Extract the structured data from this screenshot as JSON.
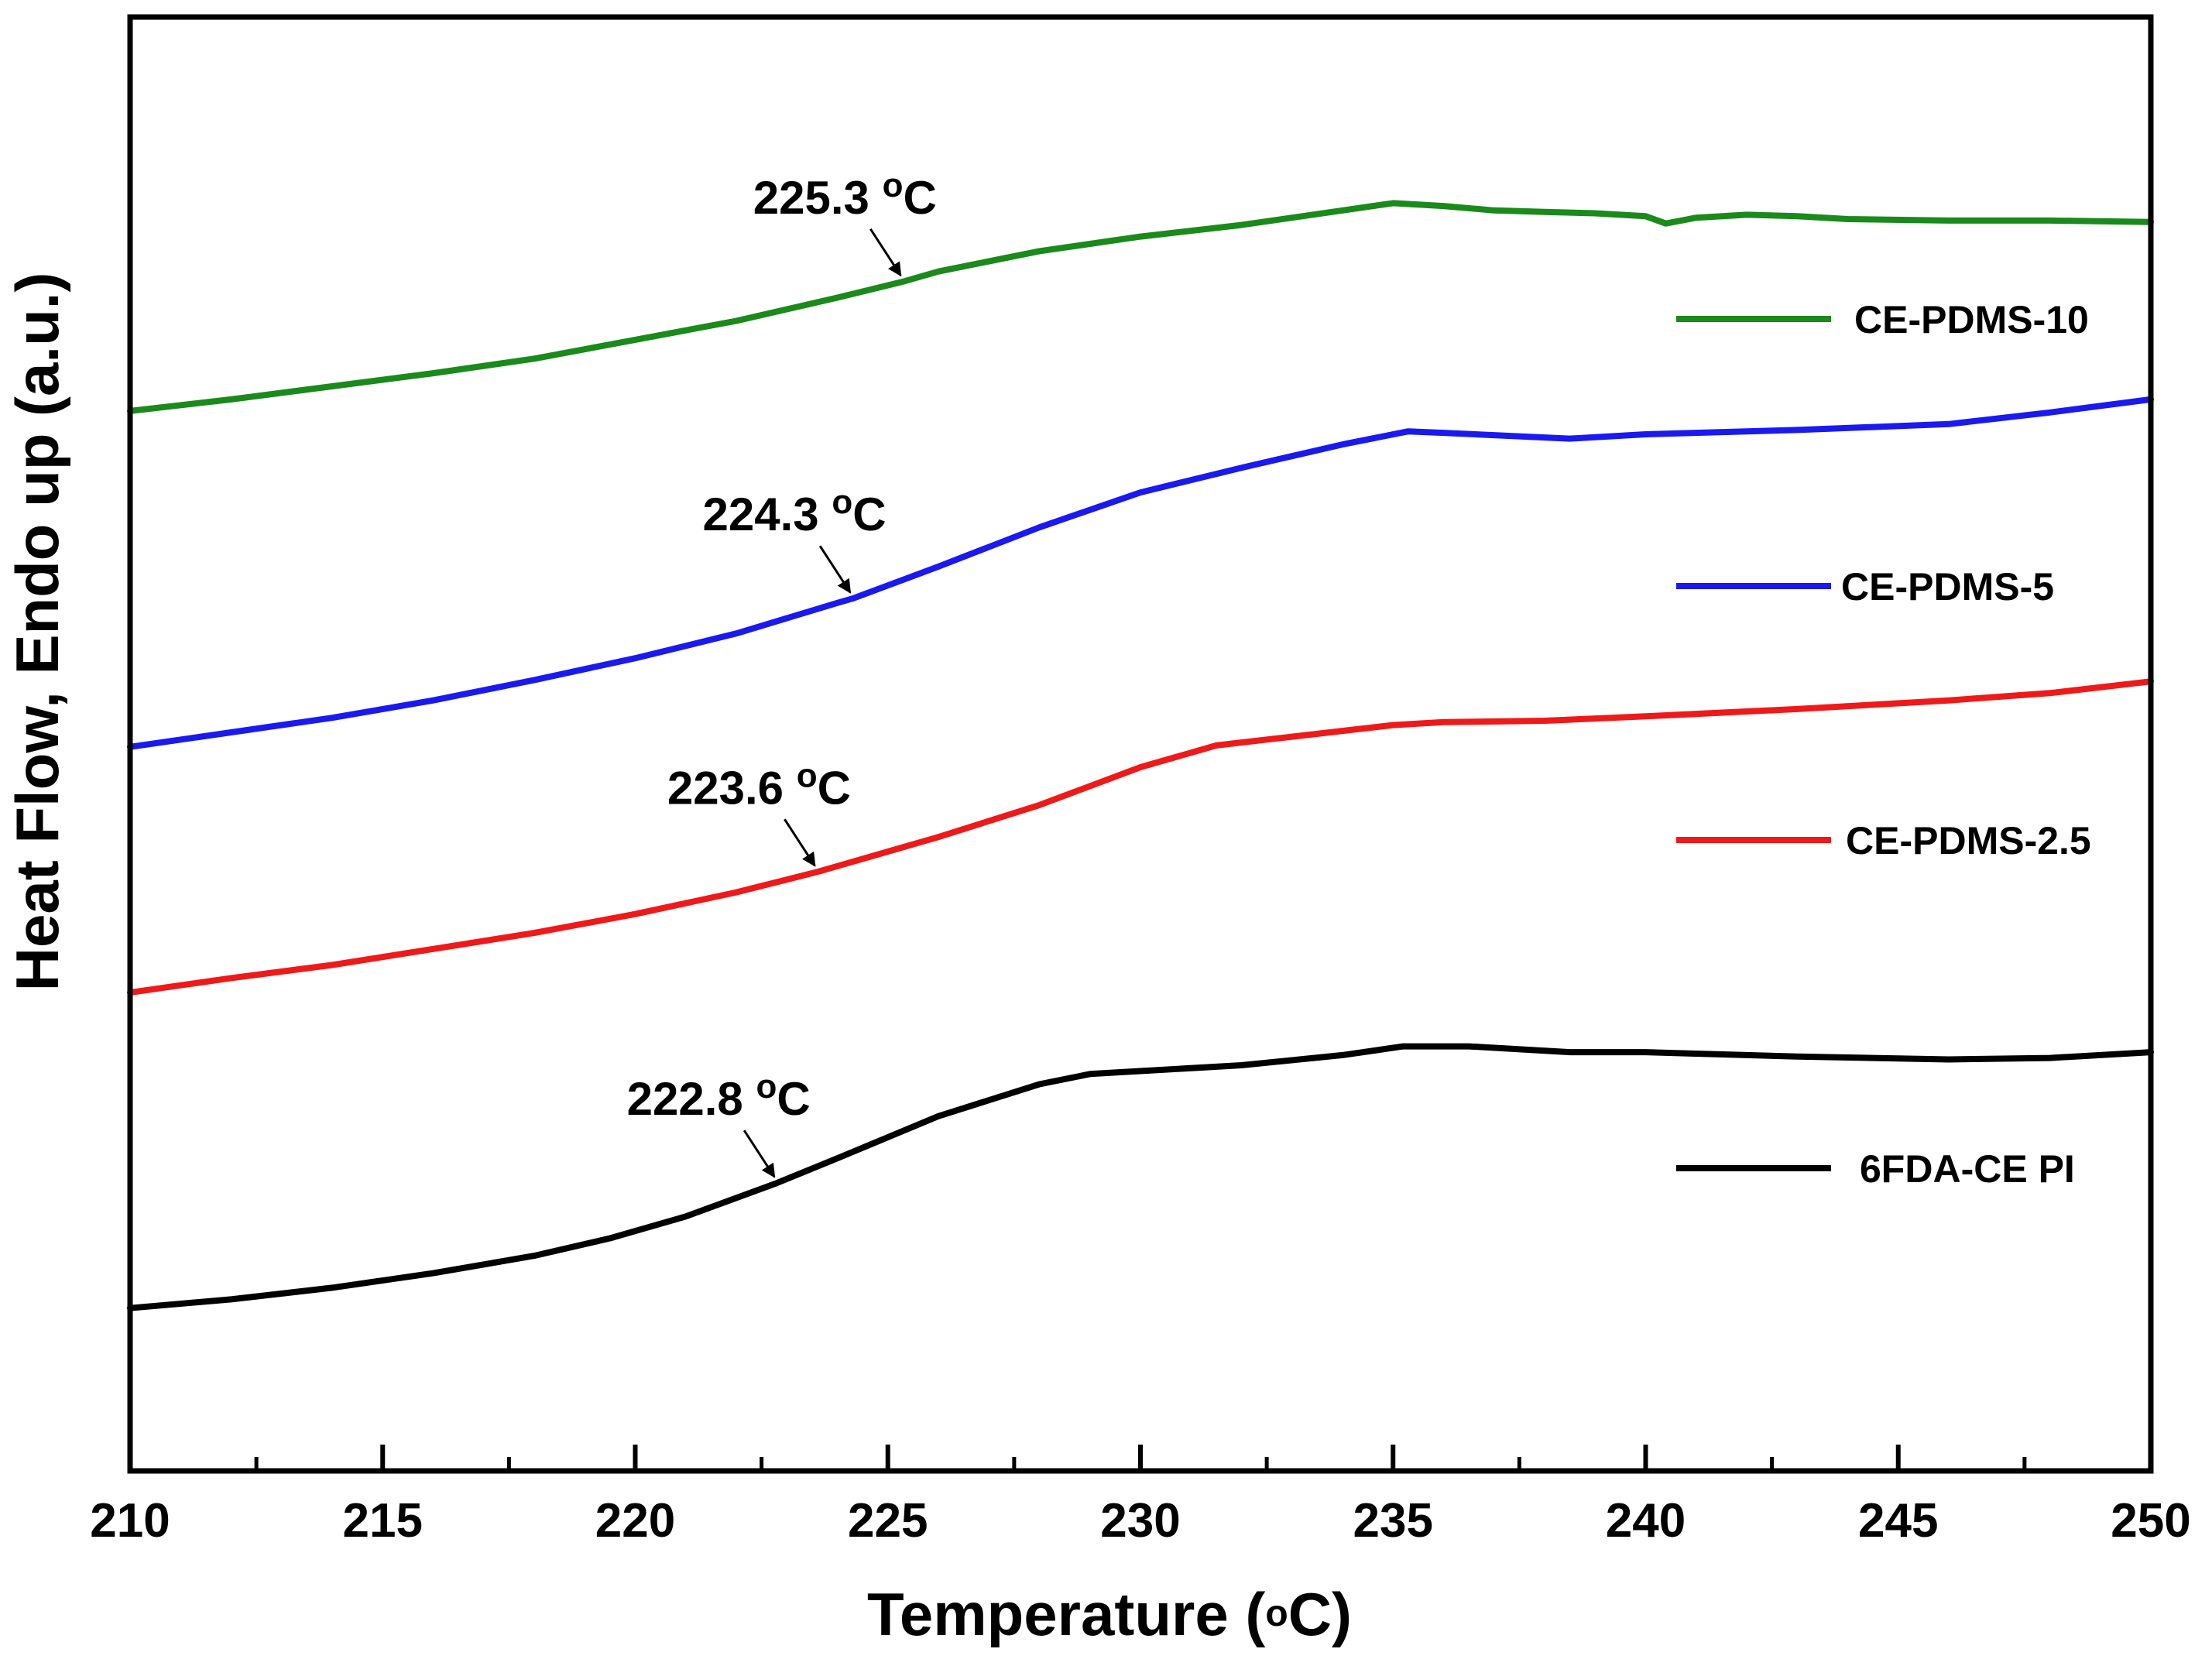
{
  "chart_data": {
    "type": "line",
    "title": "",
    "xlabel": "Temperature (",
    "xlabel_unit_sup": "o",
    "xlabel_unit": "C)",
    "ylabel": "Heat Flow, Endo up (a.u.)",
    "xlim": [
      210,
      250
    ],
    "ylim": [
      0,
      100
    ],
    "x_ticks": [
      210,
      215,
      220,
      225,
      230,
      235,
      240,
      245,
      250
    ],
    "x_minor_ticks": [
      212.5,
      217.5,
      222.5,
      227.5,
      232.5,
      237.5,
      242.5,
      247.5
    ],
    "grid": false,
    "legend_position": "right",
    "series": [
      {
        "name": "CE-PDMS-10",
        "color": "#1a8a1a",
        "points": [
          [
            210,
            72.9
          ],
          [
            212,
            73.7
          ],
          [
            214,
            74.6
          ],
          [
            216,
            75.5
          ],
          [
            218,
            76.5
          ],
          [
            220,
            77.8
          ],
          [
            222,
            79.1
          ],
          [
            224,
            80.7
          ],
          [
            225.3,
            81.8
          ],
          [
            226,
            82.5
          ],
          [
            228,
            83.9
          ],
          [
            230,
            84.9
          ],
          [
            232,
            85.7
          ],
          [
            234,
            86.7
          ],
          [
            235,
            87.2
          ],
          [
            236,
            87.0
          ],
          [
            237,
            86.7
          ],
          [
            238,
            86.6
          ],
          [
            239,
            86.5
          ],
          [
            240,
            86.3
          ],
          [
            240.4,
            85.8
          ],
          [
            241,
            86.2
          ],
          [
            242,
            86.4
          ],
          [
            243,
            86.3
          ],
          [
            244,
            86.1
          ],
          [
            246,
            86.0
          ],
          [
            248,
            86.0
          ],
          [
            250,
            85.9
          ]
        ]
      },
      {
        "name": "CE-PDMS-5",
        "color": "#1a1aee",
        "points": [
          [
            210,
            49.8
          ],
          [
            212,
            50.8
          ],
          [
            214,
            51.8
          ],
          [
            216,
            53.0
          ],
          [
            218,
            54.4
          ],
          [
            220,
            55.9
          ],
          [
            222,
            57.6
          ],
          [
            224,
            59.7
          ],
          [
            224.3,
            60.0
          ],
          [
            226,
            62.2
          ],
          [
            228,
            64.9
          ],
          [
            230,
            67.3
          ],
          [
            232,
            69.0
          ],
          [
            234,
            70.6
          ],
          [
            235.3,
            71.5
          ],
          [
            236,
            71.4
          ],
          [
            238.5,
            71.0
          ],
          [
            240,
            71.3
          ],
          [
            243,
            71.6
          ],
          [
            246,
            72.0
          ],
          [
            248,
            72.8
          ],
          [
            250,
            73.7
          ]
        ]
      },
      {
        "name": "CE-PDMS-2.5",
        "color": "#ee1a1a",
        "points": [
          [
            210,
            32.9
          ],
          [
            212,
            33.9
          ],
          [
            214,
            34.8
          ],
          [
            216,
            35.9
          ],
          [
            218,
            37.0
          ],
          [
            220,
            38.3
          ],
          [
            222,
            39.8
          ],
          [
            223.6,
            41.2
          ],
          [
            224,
            41.6
          ],
          [
            226,
            43.6
          ],
          [
            228,
            45.8
          ],
          [
            230,
            48.4
          ],
          [
            231.5,
            49.9
          ],
          [
            233,
            50.5
          ],
          [
            235,
            51.3
          ],
          [
            236,
            51.5
          ],
          [
            238,
            51.6
          ],
          [
            240,
            51.9
          ],
          [
            243,
            52.4
          ],
          [
            246,
            53.0
          ],
          [
            248,
            53.5
          ],
          [
            250,
            54.3
          ]
        ]
      },
      {
        "name": "6FDA-CE PI",
        "color": "#000000",
        "points": [
          [
            210,
            11.2
          ],
          [
            212,
            11.8
          ],
          [
            214,
            12.6
          ],
          [
            216,
            13.6
          ],
          [
            218,
            14.8
          ],
          [
            219.5,
            16.0
          ],
          [
            221,
            17.5
          ],
          [
            222.8,
            19.8
          ],
          [
            224,
            21.5
          ],
          [
            226,
            24.4
          ],
          [
            228,
            26.6
          ],
          [
            229,
            27.3
          ],
          [
            230,
            27.5
          ],
          [
            232,
            27.9
          ],
          [
            234,
            28.6
          ],
          [
            235.2,
            29.2
          ],
          [
            236.5,
            29.2
          ],
          [
            238.5,
            28.8
          ],
          [
            240,
            28.8
          ],
          [
            243,
            28.5
          ],
          [
            246,
            28.3
          ],
          [
            248,
            28.4
          ],
          [
            250,
            28.8
          ]
        ]
      }
    ],
    "annotations": [
      {
        "label": "225.3",
        "sup": "o",
        "unit": "C",
        "x": 225.3,
        "series": "CE-PDMS-10"
      },
      {
        "label": "224.3",
        "sup": "o",
        "unit": "C",
        "x": 224.3,
        "series": "CE-PDMS-5"
      },
      {
        "label": "223.6",
        "sup": "o",
        "unit": "C",
        "x": 223.6,
        "series": "CE-PDMS-2.5"
      },
      {
        "label": "222.8",
        "sup": "o",
        "unit": "C",
        "x": 222.8,
        "series": "6FDA-CE PI"
      }
    ]
  }
}
